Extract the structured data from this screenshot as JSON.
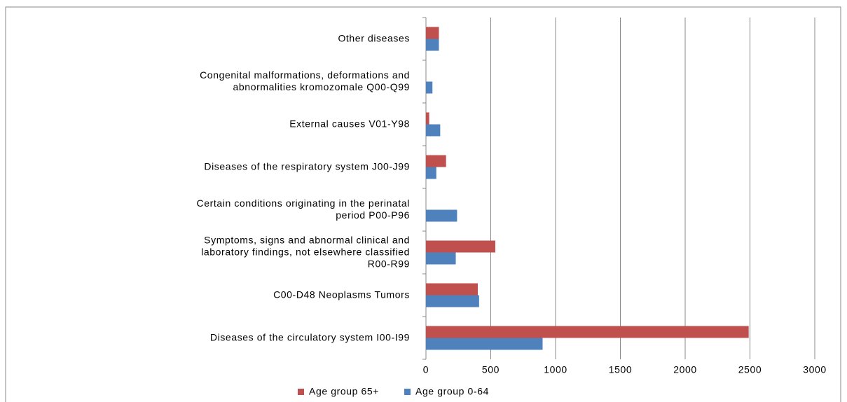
{
  "chart_data": {
    "type": "hbar",
    "categories": [
      "Diseases of the circulatory system I00-I99",
      "C00-D48 Neoplasms Tumors",
      "Symptoms, signs and abnormal clinical and laboratory findings, not elsewhere classified R00-R99",
      "Certain conditions originating in the perinatal period P00-P96",
      "Diseases of the respiratory system J00-J99",
      "External causes V01-Y98",
      "Congenital malformations, deformations and abnormalities kromozomale Q00-Q99",
      "Other diseases"
    ],
    "series": [
      {
        "name": "Age group 65+",
        "color": "#c0504d",
        "values": [
          2490,
          400,
          535,
          0,
          155,
          25,
          0,
          100
        ]
      },
      {
        "name": "Age group 0-64",
        "color": "#4f81bd",
        "values": [
          900,
          410,
          230,
          240,
          80,
          110,
          50,
          100
        ]
      }
    ],
    "xlim": [
      0,
      3000
    ],
    "xticks": [
      0,
      500,
      1000,
      1500,
      2000,
      2500,
      3000
    ],
    "grid": true,
    "legend": "bottom"
  }
}
